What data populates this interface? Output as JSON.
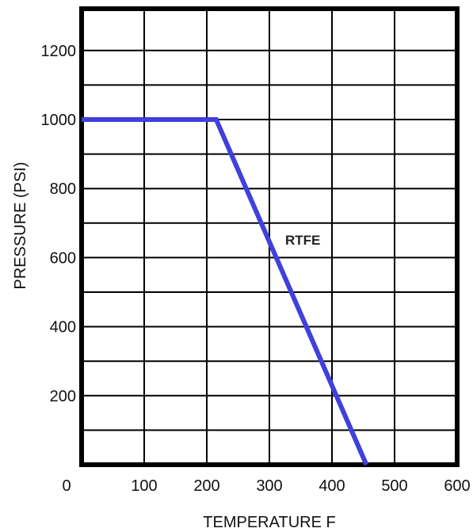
{
  "chart_data": {
    "type": "line",
    "title": "",
    "xlabel": "TEMPERATURE  F",
    "ylabel": "PRESSURE (PSI)",
    "xlim": [
      0,
      600
    ],
    "ylim": [
      0,
      1300
    ],
    "x_ticks": [
      "0",
      "100",
      "200",
      "300",
      "400",
      "500",
      "600"
    ],
    "y_ticks": [
      "200",
      "400",
      "600",
      "800",
      "1000",
      "1200"
    ],
    "grid": true,
    "series": [
      {
        "name": "RTFE",
        "color": "#4040dd",
        "points": [
          [
            0,
            1000
          ],
          [
            215,
            1000
          ],
          [
            455,
            0
          ]
        ]
      }
    ]
  }
}
